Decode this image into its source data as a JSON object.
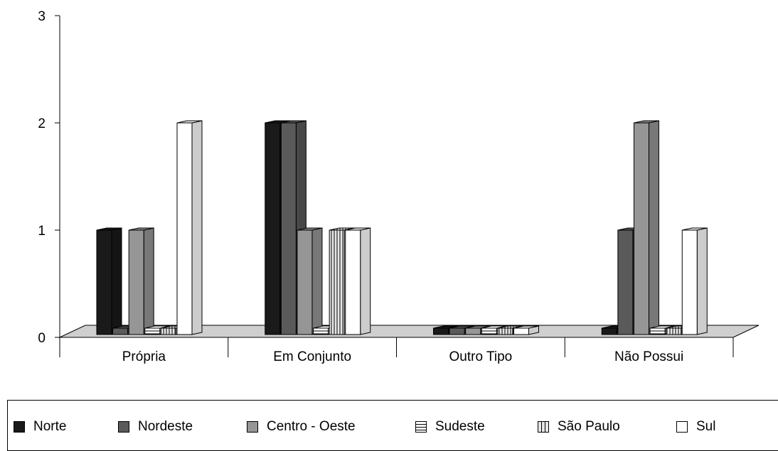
{
  "chart_data": {
    "type": "bar",
    "categories": [
      "Própria",
      "Em Conjunto",
      "Outro Tipo",
      "Não Possui"
    ],
    "series": [
      {
        "name": "Norte",
        "values": [
          1,
          2,
          0,
          0
        ],
        "color": "#1a1a1a",
        "pattern": "solid"
      },
      {
        "name": "Nordeste",
        "values": [
          0,
          2,
          0,
          1
        ],
        "color": "#5a5a5a",
        "pattern": "solid"
      },
      {
        "name": "Centro - Oeste",
        "values": [
          1,
          1,
          0,
          2
        ],
        "color": "#969696",
        "pattern": "solid"
      },
      {
        "name": "Sudeste",
        "values": [
          0,
          0,
          0,
          0
        ],
        "color": "#ffffff",
        "pattern": "horizontal-stripes"
      },
      {
        "name": "São Paulo",
        "values": [
          0,
          1,
          0,
          0
        ],
        "color": "#dcdcdc",
        "pattern": "vertical-stripes"
      },
      {
        "name": "Sul",
        "values": [
          2,
          1,
          0,
          1
        ],
        "color": "#ffffff",
        "pattern": "solid"
      }
    ],
    "yticks": [
      0,
      1,
      2,
      3
    ],
    "ylim": [
      0,
      3
    ],
    "grid": false,
    "three_d": true,
    "legend_position": "bottom"
  }
}
